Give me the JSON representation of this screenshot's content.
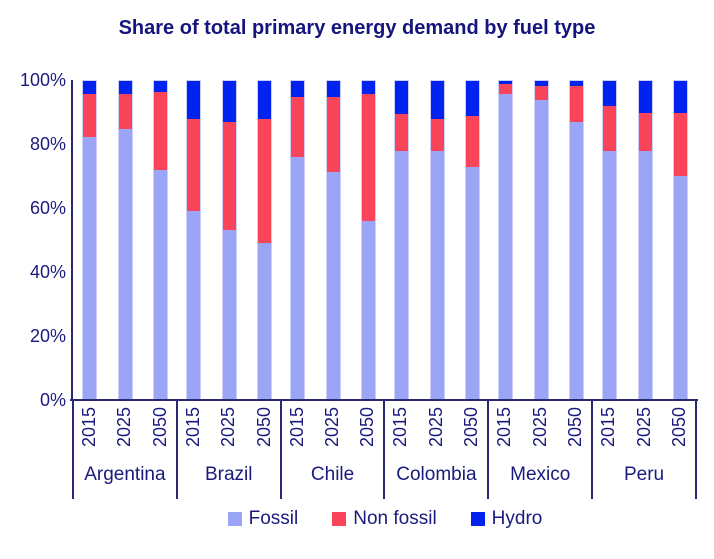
{
  "colors": {
    "fossil": "#9BA5F5",
    "non_fossil": "#FA445A",
    "hydro": "#0222F0",
    "text_navy": "#1A1A7D",
    "axis_navy": "#28286E"
  },
  "legend": {
    "items": [
      {
        "key": "fossil",
        "label": "Fossil",
        "color": "#9BA5F5"
      },
      {
        "key": "non_fossil",
        "label": "Non fossil",
        "color": "#FA445A"
      },
      {
        "key": "hydro",
        "label": "Hydro",
        "color": "#0222F0"
      }
    ]
  },
  "chart_data": {
    "type": "bar",
    "stacked": true,
    "title": "Share of total primary energy demand by fuel type",
    "ylabel": "",
    "xlabel": "",
    "ylim": [
      0,
      100
    ],
    "grid": false,
    "legend_position": "bottom",
    "y_tick_labels": [
      "100%",
      "80%",
      "60%",
      "40%",
      "20%",
      "0%"
    ],
    "series_order": [
      "Fossil",
      "Non fossil",
      "Hydro"
    ],
    "years": [
      "2015",
      "2025",
      "2050"
    ],
    "categories": [
      "Argentina",
      "Brazil",
      "Chile",
      "Colombia",
      "Mexico",
      "Peru"
    ],
    "groups": [
      {
        "country": "Argentina",
        "bars": [
          {
            "year": "2015",
            "fossil": 82.5,
            "non_fossil": 13.5,
            "hydro": 4.0
          },
          {
            "year": "2025",
            "fossil": 85.0,
            "non_fossil": 11.0,
            "hydro": 4.0
          },
          {
            "year": "2050",
            "fossil": 72.0,
            "non_fossil": 24.5,
            "hydro": 3.5
          }
        ]
      },
      {
        "country": "Brazil",
        "bars": [
          {
            "year": "2015",
            "fossil": 59.0,
            "non_fossil": 29.0,
            "hydro": 12.0
          },
          {
            "year": "2025",
            "fossil": 53.0,
            "non_fossil": 34.0,
            "hydro": 13.0
          },
          {
            "year": "2050",
            "fossil": 49.0,
            "non_fossil": 39.0,
            "hydro": 12.0
          }
        ]
      },
      {
        "country": "Chile",
        "bars": [
          {
            "year": "2015",
            "fossil": 76.0,
            "non_fossil": 19.0,
            "hydro": 5.0
          },
          {
            "year": "2025",
            "fossil": 71.5,
            "non_fossil": 23.5,
            "hydro": 5.0
          },
          {
            "year": "2050",
            "fossil": 56.0,
            "non_fossil": 40.0,
            "hydro": 4.0
          }
        ]
      },
      {
        "country": "Colombia",
        "bars": [
          {
            "year": "2015",
            "fossil": 78.0,
            "non_fossil": 11.5,
            "hydro": 10.5
          },
          {
            "year": "2025",
            "fossil": 78.0,
            "non_fossil": 10.0,
            "hydro": 12.0
          },
          {
            "year": "2050",
            "fossil": 73.0,
            "non_fossil": 16.0,
            "hydro": 11.0
          }
        ]
      },
      {
        "country": "Mexico",
        "bars": [
          {
            "year": "2015",
            "fossil": 96.0,
            "non_fossil": 3.0,
            "hydro": 1.0
          },
          {
            "year": "2025",
            "fossil": 94.0,
            "non_fossil": 4.5,
            "hydro": 1.5
          },
          {
            "year": "2050",
            "fossil": 87.0,
            "non_fossil": 11.5,
            "hydro": 1.5
          }
        ]
      },
      {
        "country": "Peru",
        "bars": [
          {
            "year": "2015",
            "fossil": 78.0,
            "non_fossil": 14.0,
            "hydro": 8.0
          },
          {
            "year": "2025",
            "fossil": 78.0,
            "non_fossil": 12.0,
            "hydro": 10.0
          },
          {
            "year": "2050",
            "fossil": 70.0,
            "non_fossil": 20.0,
            "hydro": 10.0
          }
        ]
      }
    ]
  }
}
